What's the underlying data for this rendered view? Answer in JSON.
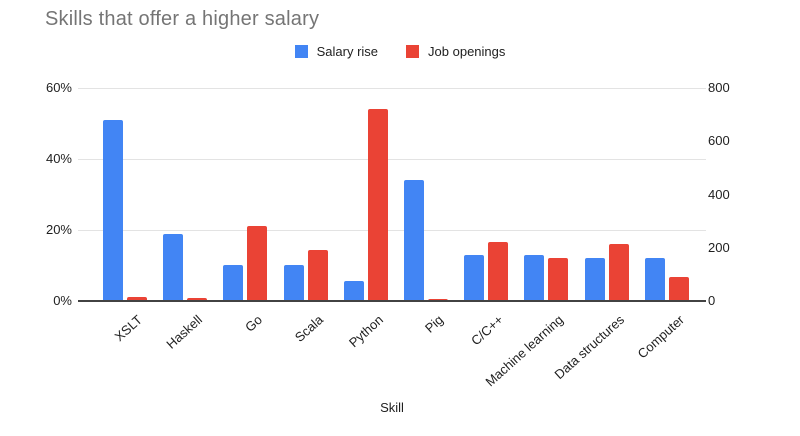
{
  "header": {
    "title": "Skills that offer a higher salary"
  },
  "chart_data": {
    "type": "bar",
    "title": "Skills that offer a higher salary",
    "xlabel": "Skill",
    "legend_position": "top",
    "grid": true,
    "categories": [
      "XSLT",
      "Haskell",
      "Go",
      "Scala",
      "Python",
      "Pig",
      "C/C++",
      "Machine learning",
      "Data structures",
      "Computer"
    ],
    "series": [
      {
        "name": "Salary rise",
        "axis": "left",
        "color": "#4285f4",
        "unit": "%",
        "values": [
          51,
          19,
          10,
          10,
          5.5,
          34,
          13,
          13,
          12,
          12
        ]
      },
      {
        "name": "Job openings",
        "axis": "right",
        "color": "#ea4335",
        "unit": "count",
        "values": [
          15,
          10,
          280,
          190,
          720,
          8,
          220,
          160,
          215,
          90
        ]
      }
    ],
    "left_axis": {
      "min": 0,
      "max": 60,
      "tick_values": [
        0,
        20,
        40,
        60
      ],
      "tick_labels": [
        "0%",
        "20%",
        "40%",
        "60%"
      ]
    },
    "right_axis": {
      "min": 0,
      "max": 800,
      "tick_values": [
        0,
        200,
        400,
        600,
        800
      ],
      "tick_labels": [
        "0",
        "200",
        "400",
        "600",
        "800"
      ]
    }
  }
}
